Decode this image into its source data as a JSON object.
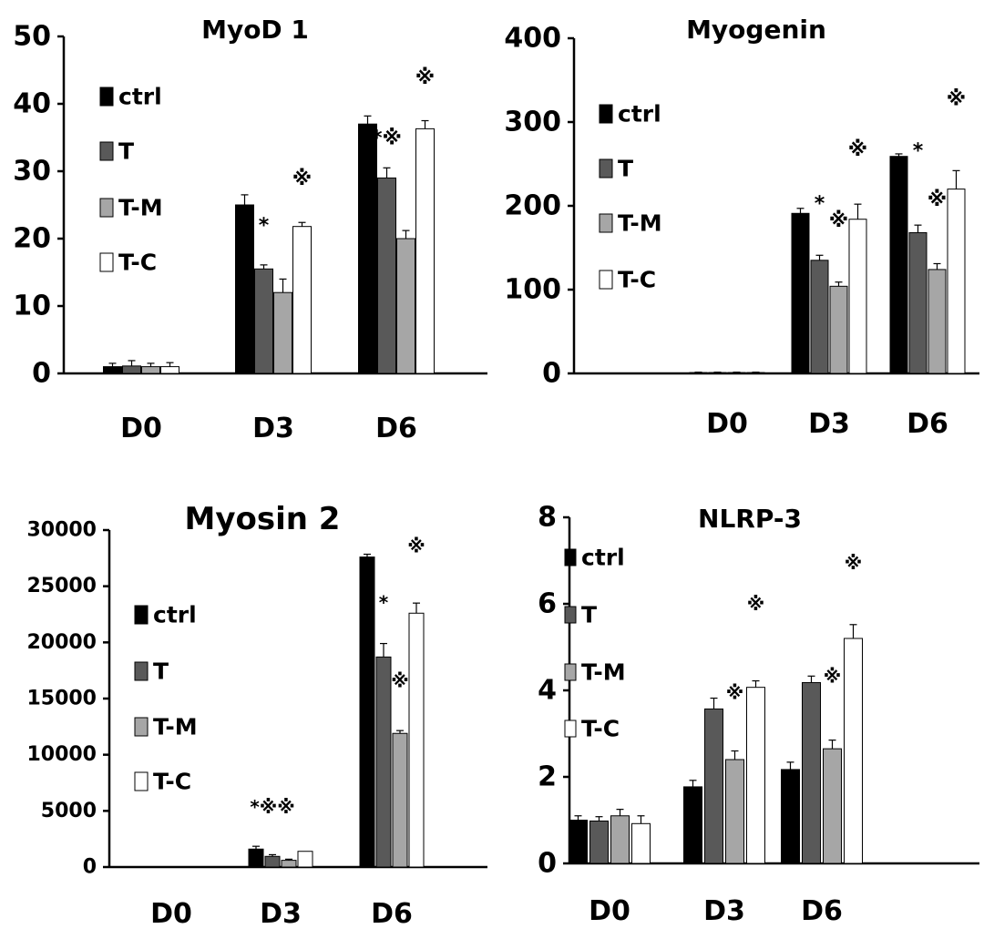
{
  "chart_data": [
    {
      "type": "bar",
      "title": "MyoD 1",
      "categories": [
        "D0",
        "D3",
        "D6"
      ],
      "ylim": [
        0,
        50
      ],
      "yticks": [
        "0",
        "10",
        "20",
        "30",
        "40",
        "50"
      ],
      "legend_placement": "left",
      "series": [
        {
          "name": "ctrl",
          "color": "#000000",
          "values": [
            1,
            25,
            37
          ],
          "errors": [
            0.5,
            1.5,
            1.2
          ]
        },
        {
          "name": "T",
          "color": "#595959",
          "values": [
            1.1,
            15.5,
            29
          ],
          "errors": [
            0.8,
            0.6,
            1.5
          ]
        },
        {
          "name": "T-M",
          "color": "#a6a6a6",
          "values": [
            1,
            12,
            20
          ],
          "errors": [
            0.5,
            2,
            1.2
          ]
        },
        {
          "name": "T-C",
          "color": "#ffffff",
          "values": [
            1,
            21.8,
            36.3
          ],
          "errors": [
            0.6,
            0.6,
            1.2
          ]
        }
      ],
      "annotations": [
        {
          "text": "*",
          "category": 1,
          "series": 1,
          "level": 21
        },
        {
          "text": "※",
          "category": 1,
          "series": 3,
          "level": 28
        },
        {
          "text": "*※",
          "category": 2,
          "series": 1,
          "level": 34
        },
        {
          "text": "※",
          "category": 2,
          "series": 3,
          "level": 43
        }
      ]
    },
    {
      "type": "bar",
      "title": "Myogenin",
      "categories": [
        "D0",
        "D3",
        "D6"
      ],
      "ylim": [
        0,
        400
      ],
      "yticks": [
        "0",
        "100",
        "200",
        "300",
        "400"
      ],
      "legend_placement": "left",
      "series": [
        {
          "name": "ctrl",
          "color": "#000000",
          "values": [
            1,
            191,
            259
          ],
          "errors": [
            0.5,
            6,
            3
          ]
        },
        {
          "name": "T",
          "color": "#595959",
          "values": [
            1,
            135,
            168
          ],
          "errors": [
            0.5,
            6,
            9
          ]
        },
        {
          "name": "T-M",
          "color": "#a6a6a6",
          "values": [
            1,
            104,
            124
          ],
          "errors": [
            0.5,
            5,
            7
          ]
        },
        {
          "name": "T-C",
          "color": "#ffffff",
          "values": [
            1,
            184,
            220
          ],
          "errors": [
            0.5,
            18,
            22
          ]
        }
      ],
      "annotations": [
        {
          "text": "*",
          "category": 1,
          "series": 1,
          "level": 195
        },
        {
          "text": "※",
          "category": 1,
          "series": 2,
          "level": 175
        },
        {
          "text": "※",
          "category": 1,
          "series": 3,
          "level": 260
        },
        {
          "text": "*",
          "category": 2,
          "series": 1,
          "level": 258
        },
        {
          "text": "※",
          "category": 2,
          "series": 2,
          "level": 200
        },
        {
          "text": "※",
          "category": 2,
          "series": 3,
          "level": 320
        }
      ]
    },
    {
      "type": "bar",
      "title": "Myosin 2",
      "categories": [
        "D0",
        "D3",
        "D6"
      ],
      "ylim": [
        0,
        30000
      ],
      "yticks": [
        "0",
        "5000",
        "10000",
        "15000",
        "20000",
        "25000",
        "30000"
      ],
      "legend_placement": "left",
      "series": [
        {
          "name": "ctrl",
          "color": "#000000",
          "values": [
            0,
            1600,
            27600
          ],
          "errors": [
            0,
            250,
            250
          ]
        },
        {
          "name": "T",
          "color": "#595959",
          "values": [
            0,
            950,
            18700
          ],
          "errors": [
            0,
            150,
            1200
          ]
        },
        {
          "name": "T-M",
          "color": "#a6a6a6",
          "values": [
            0,
            600,
            11900
          ],
          "errors": [
            0,
            100,
            250
          ]
        },
        {
          "name": "T-C",
          "color": "#ffffff",
          "values": [
            0,
            1400,
            22600
          ],
          "errors": [
            0,
            0,
            900
          ]
        }
      ],
      "annotations": [
        {
          "text": "*※※",
          "category": 1,
          "series": 1,
          "level": 4800
        },
        {
          "text": "*",
          "category": 2,
          "series": 1,
          "level": 23000
        },
        {
          "text": "※",
          "category": 2,
          "series": 2,
          "level": 16000
        },
        {
          "text": "※",
          "category": 2,
          "series": 3,
          "level": 28000
        }
      ]
    },
    {
      "type": "bar",
      "title": "NLRP-3",
      "categories": [
        "D0",
        "D3",
        "D6"
      ],
      "ylim": [
        0,
        8
      ],
      "yticks": [
        "0",
        "2",
        "4",
        "6",
        "8"
      ],
      "legend_placement": "left",
      "series": [
        {
          "name": "ctrl",
          "color": "#000000",
          "values": [
            1,
            1.77,
            2.17
          ],
          "errors": [
            0.1,
            0.15,
            0.17
          ]
        },
        {
          "name": "T",
          "color": "#595959",
          "values": [
            0.98,
            3.57,
            4.18
          ],
          "errors": [
            0.1,
            0.25,
            0.15
          ]
        },
        {
          "name": "T-M",
          "color": "#a6a6a6",
          "values": [
            1.1,
            2.4,
            2.65
          ],
          "errors": [
            0.15,
            0.2,
            0.2
          ]
        },
        {
          "name": "T-C",
          "color": "#ffffff",
          "values": [
            0.92,
            4.07,
            5.2
          ],
          "errors": [
            0.18,
            0.15,
            0.32
          ]
        }
      ],
      "annotations": [
        {
          "text": "※",
          "category": 1,
          "series": 2,
          "level": 3.8
        },
        {
          "text": "※",
          "category": 1,
          "series": 3,
          "level": 5.85
        },
        {
          "text": "※",
          "category": 2,
          "series": 2,
          "level": 4.18
        },
        {
          "text": "※",
          "category": 2,
          "series": 3,
          "level": 6.8
        }
      ]
    }
  ]
}
